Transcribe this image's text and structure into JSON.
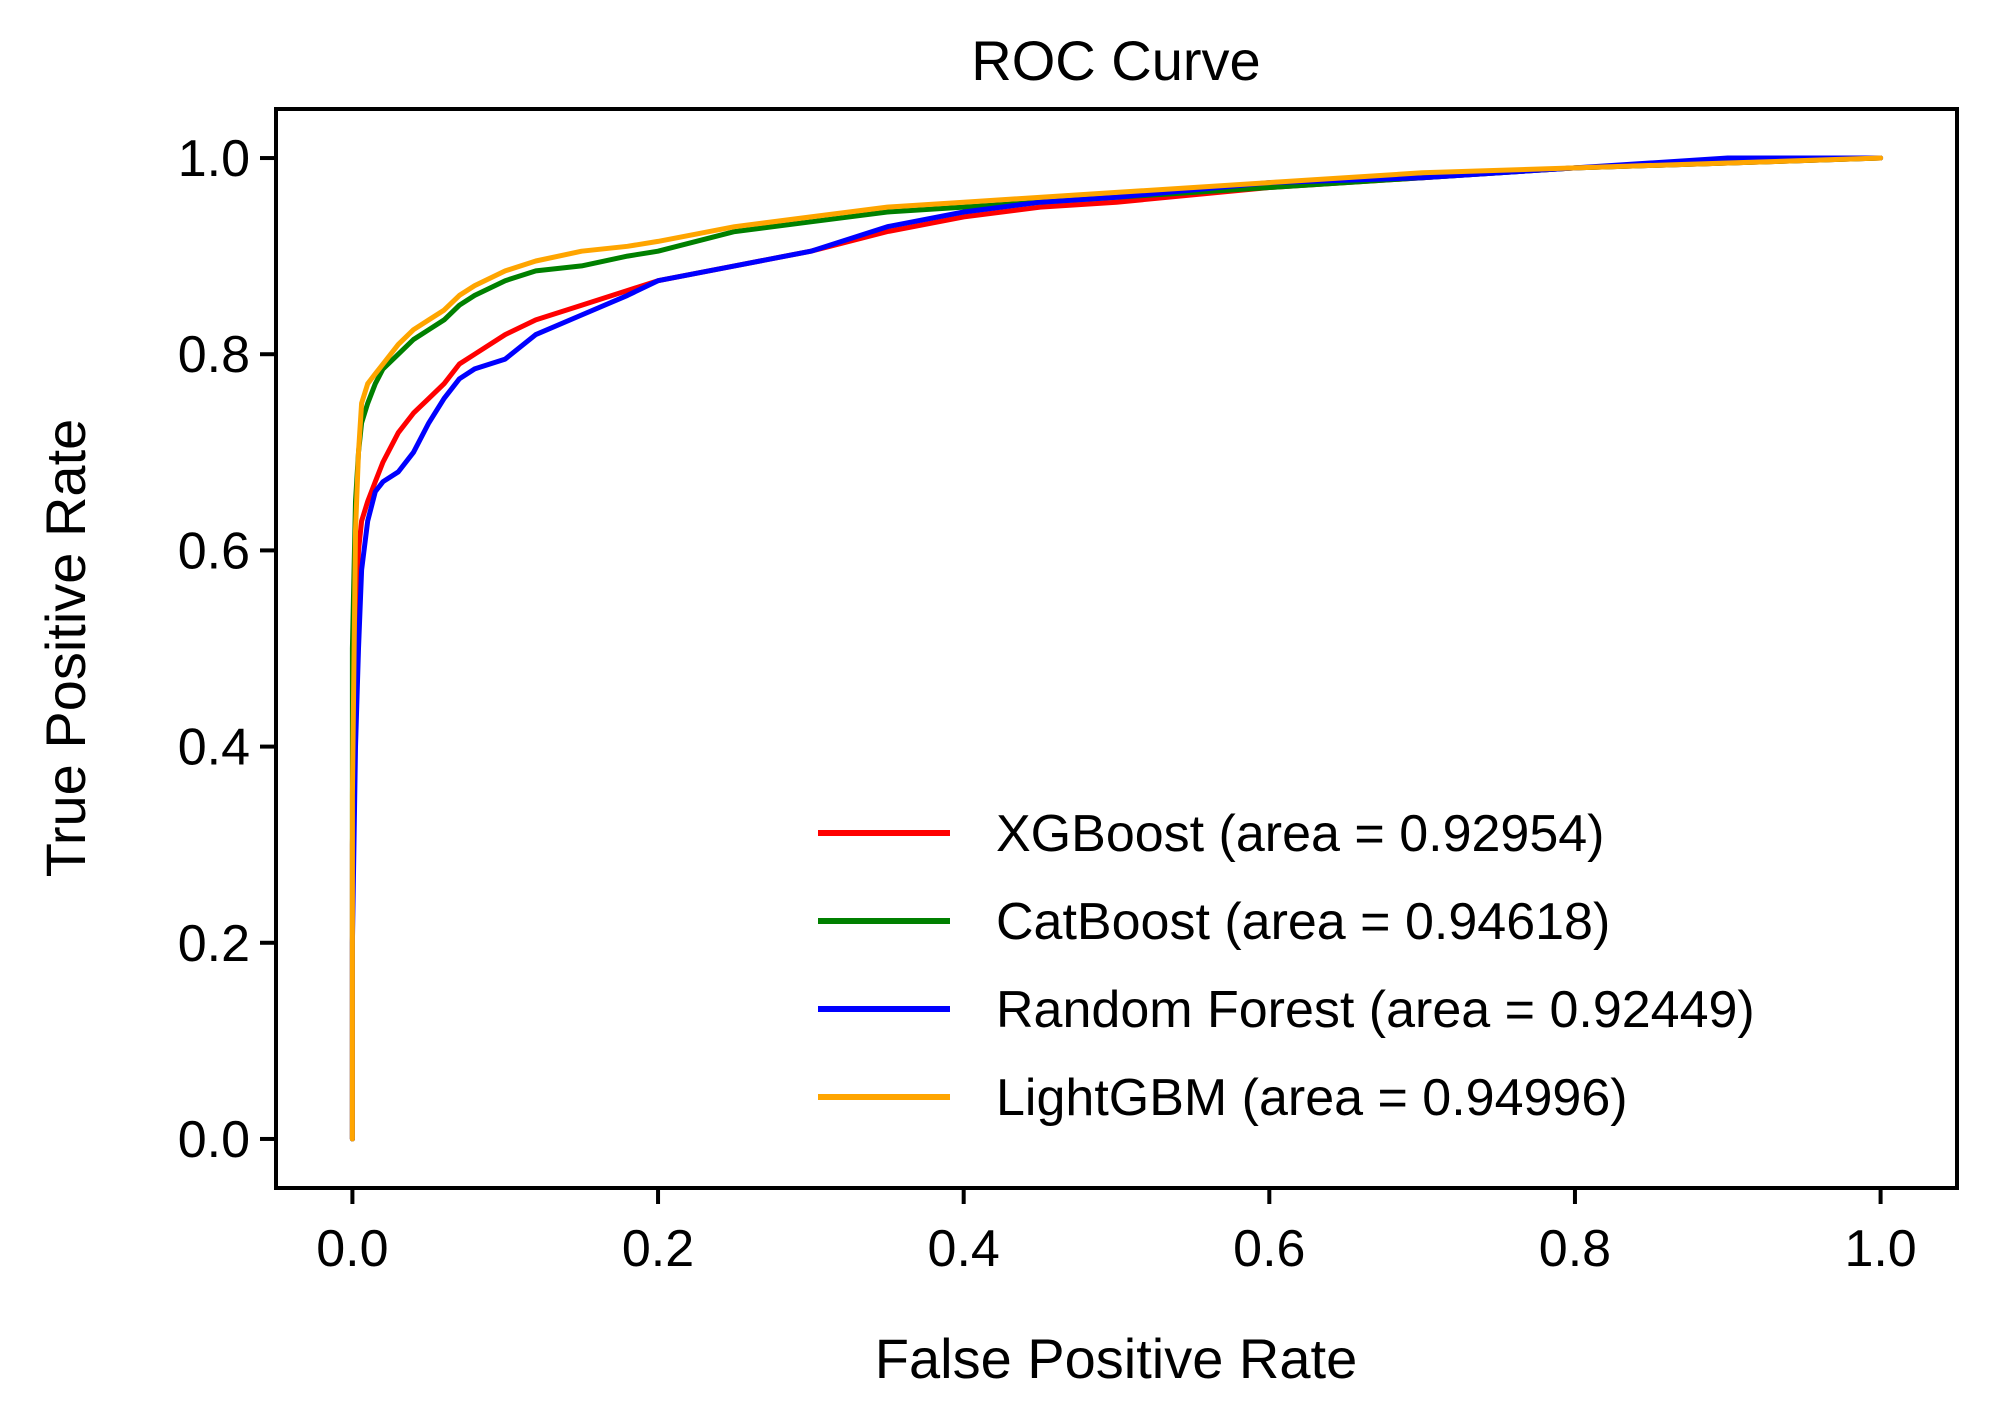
{
  "chart_data": {
    "type": "line",
    "title": "ROC Curve",
    "xlabel": "False Positive Rate",
    "ylabel": "True Positive Rate",
    "xlim": [
      -0.05,
      1.05
    ],
    "ylim": [
      -0.05,
      1.05
    ],
    "x_ticks": [
      "0.0",
      "0.2",
      "0.4",
      "0.6",
      "0.8",
      "1.0"
    ],
    "y_ticks": [
      "0.0",
      "0.2",
      "0.4",
      "0.6",
      "0.8",
      "1.0"
    ],
    "grid": false,
    "legend_position": "lower-right",
    "series": [
      {
        "name": "XGBoost (area = 0.92954)",
        "color": "#ff0000",
        "x": [
          0.0,
          0.0,
          0.002,
          0.004,
          0.006,
          0.01,
          0.015,
          0.02,
          0.03,
          0.04,
          0.05,
          0.06,
          0.07,
          0.08,
          0.1,
          0.12,
          0.15,
          0.18,
          0.2,
          0.25,
          0.3,
          0.35,
          0.4,
          0.45,
          0.5,
          0.6,
          0.7,
          0.8,
          0.9,
          1.0
        ],
        "y": [
          0.0,
          0.3,
          0.5,
          0.6,
          0.63,
          0.65,
          0.67,
          0.69,
          0.72,
          0.74,
          0.755,
          0.77,
          0.79,
          0.8,
          0.82,
          0.835,
          0.85,
          0.865,
          0.875,
          0.89,
          0.905,
          0.925,
          0.94,
          0.95,
          0.955,
          0.97,
          0.98,
          0.99,
          0.995,
          1.0
        ]
      },
      {
        "name": "CatBoost (area = 0.94618)",
        "color": "#008000",
        "x": [
          0.0,
          0.0,
          0.002,
          0.004,
          0.006,
          0.01,
          0.015,
          0.02,
          0.03,
          0.04,
          0.05,
          0.06,
          0.07,
          0.08,
          0.1,
          0.12,
          0.15,
          0.18,
          0.2,
          0.25,
          0.3,
          0.35,
          0.4,
          0.5,
          0.6,
          0.7,
          0.8,
          0.9,
          1.0
        ],
        "y": [
          0.0,
          0.5,
          0.65,
          0.7,
          0.73,
          0.75,
          0.77,
          0.785,
          0.8,
          0.815,
          0.825,
          0.835,
          0.85,
          0.86,
          0.875,
          0.885,
          0.89,
          0.9,
          0.905,
          0.925,
          0.935,
          0.945,
          0.95,
          0.96,
          0.97,
          0.98,
          0.99,
          0.995,
          1.0
        ]
      },
      {
        "name": "Random Forest (area = 0.92449)",
        "color": "#0000ff",
        "x": [
          0.0,
          0.0,
          0.002,
          0.004,
          0.006,
          0.01,
          0.015,
          0.02,
          0.03,
          0.04,
          0.05,
          0.06,
          0.07,
          0.08,
          0.1,
          0.12,
          0.15,
          0.18,
          0.2,
          0.25,
          0.3,
          0.35,
          0.4,
          0.45,
          0.5,
          0.6,
          0.7,
          0.8,
          0.9,
          1.0
        ],
        "y": [
          0.0,
          0.2,
          0.4,
          0.5,
          0.58,
          0.63,
          0.66,
          0.67,
          0.68,
          0.7,
          0.73,
          0.755,
          0.775,
          0.785,
          0.795,
          0.82,
          0.84,
          0.86,
          0.875,
          0.89,
          0.905,
          0.93,
          0.945,
          0.955,
          0.96,
          0.975,
          0.98,
          0.99,
          1.0,
          1.0
        ]
      },
      {
        "name": "LightGBM (area = 0.94996)",
        "color": "#ffa500",
        "x": [
          0.0,
          0.0,
          0.002,
          0.004,
          0.006,
          0.01,
          0.015,
          0.02,
          0.03,
          0.04,
          0.05,
          0.06,
          0.07,
          0.08,
          0.1,
          0.12,
          0.15,
          0.18,
          0.2,
          0.25,
          0.3,
          0.35,
          0.4,
          0.5,
          0.6,
          0.7,
          0.8,
          0.9,
          1.0
        ],
        "y": [
          0.0,
          0.35,
          0.62,
          0.7,
          0.75,
          0.77,
          0.78,
          0.79,
          0.81,
          0.825,
          0.835,
          0.845,
          0.86,
          0.87,
          0.885,
          0.895,
          0.905,
          0.91,
          0.915,
          0.93,
          0.94,
          0.95,
          0.955,
          0.965,
          0.975,
          0.985,
          0.99,
          0.995,
          1.0
        ]
      }
    ]
  }
}
